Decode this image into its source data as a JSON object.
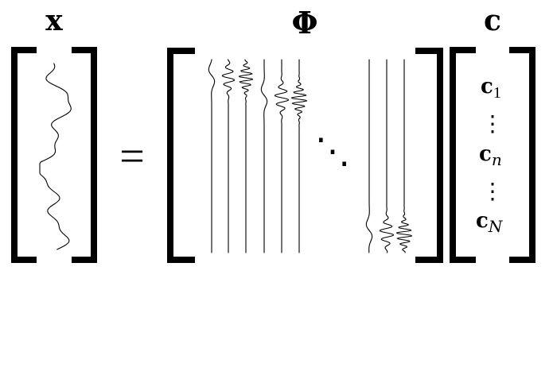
{
  "equation": {
    "lhs_symbol": "x",
    "equals_sign": "=",
    "matrix_symbol": "Φ",
    "coef_symbol": "c",
    "diagonal_dots": "⋱",
    "coefficients": [
      {
        "base": "c",
        "sub": "1"
      },
      {
        "base": "c",
        "sub": "n"
      },
      {
        "base": "c",
        "sub": "N"
      }
    ],
    "vertical_dots": "⋮"
  },
  "colors": {
    "ink": "#000000",
    "background": "#ffffff"
  }
}
